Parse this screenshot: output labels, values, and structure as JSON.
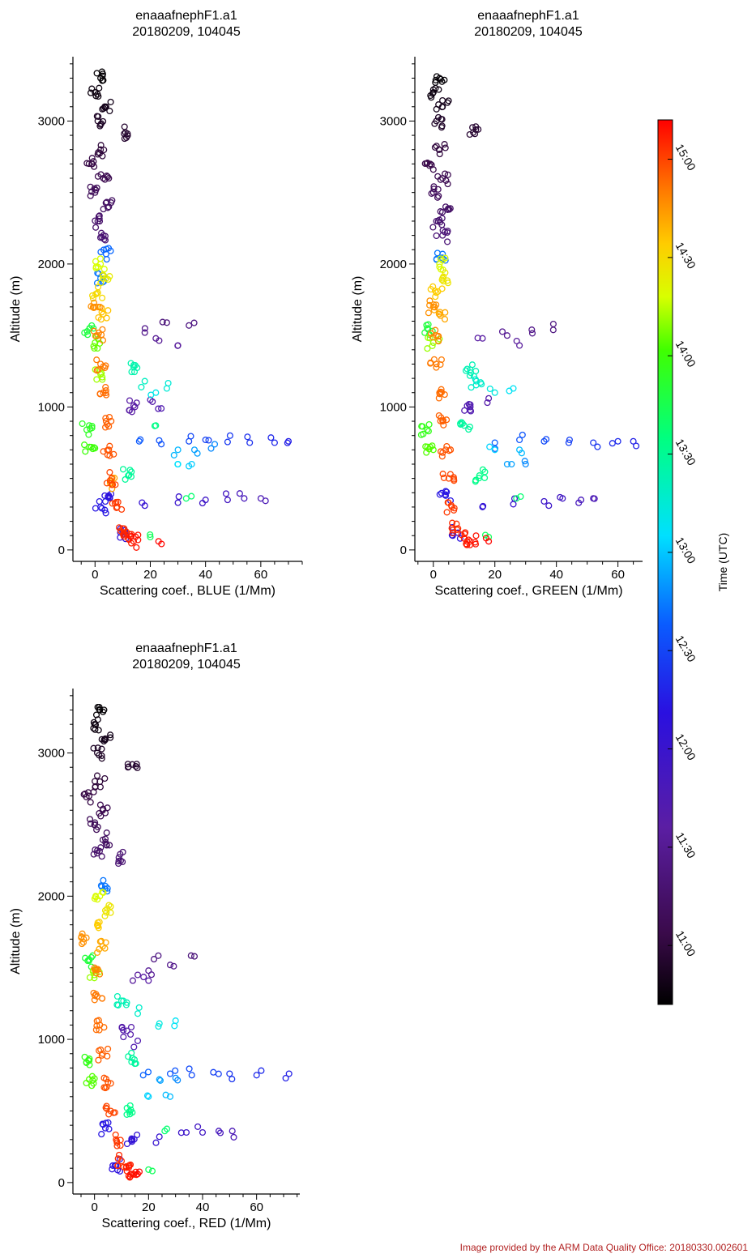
{
  "footer": "Image provided by the ARM Data Quality Office: 20180330.002601",
  "colorbar": {
    "label": "Time (UTC)",
    "range": [
      "10:42",
      "15:12"
    ],
    "ticks": [
      "11:00",
      "11:30",
      "12:00",
      "12:30",
      "13:00",
      "13:30",
      "14:00",
      "14:30",
      "15:00"
    ]
  },
  "chart_data": [
    {
      "type": "scatter",
      "title_line1": "enaaafnephF1.a1",
      "title_line2": "20180209, 104045",
      "xlabel": "Scattering coef., BLUE (1/Mm)",
      "ylabel": "Altitude (m)",
      "xlim": [
        -8,
        75
      ],
      "ylim": [
        -80,
        3450
      ],
      "xticks": [
        0,
        20,
        40,
        60
      ],
      "yticks": [
        0,
        1000,
        2000,
        3000
      ],
      "series": [
        {
          "time_range": [
            "10:42",
            "11:45"
          ],
          "points": [
            [
              2,
              3300
            ],
            [
              0,
              3200
            ],
            [
              4,
              3100
            ],
            [
              1,
              3000
            ],
            [
              11,
              2920
            ],
            [
              2,
              2800
            ],
            [
              -1,
              2700
            ],
            [
              3,
              2600
            ],
            [
              0,
              2500
            ],
            [
              5,
              2400
            ],
            [
              1,
              2300
            ],
            [
              3,
              2200
            ],
            [
              26,
              1590
            ],
            [
              34,
              1570
            ],
            [
              18,
              1520
            ],
            [
              22,
              1480
            ],
            [
              30,
              1430
            ],
            [
              14,
              1010
            ],
            [
              20,
              1050
            ],
            [
              24,
              990
            ]
          ]
        },
        {
          "time_range": [
            "11:45",
            "12:15"
          ],
          "points": [
            [
              60,
              360
            ],
            [
              54,
              360
            ],
            [
              48,
              350
            ],
            [
              40,
              350
            ],
            [
              30,
              330
            ],
            [
              18,
              310
            ],
            [
              10,
              120
            ],
            [
              5,
              380
            ],
            [
              2,
              300
            ]
          ]
        },
        {
          "time_range": [
            "12:15",
            "12:45"
          ],
          "points": [
            [
              70,
              760
            ],
            [
              65,
              750
            ],
            [
              56,
              750
            ],
            [
              48,
              755
            ],
            [
              40,
              770
            ],
            [
              34,
              760
            ],
            [
              24,
              740
            ],
            [
              16,
              760
            ],
            [
              4,
              2070
            ],
            [
              2,
              1900
            ]
          ]
        },
        {
          "time_range": [
            "12:45",
            "13:45"
          ],
          "points": [
            [
              42,
              710
            ],
            [
              36,
              700
            ],
            [
              30,
              700
            ],
            [
              35,
              600
            ],
            [
              30,
              600
            ],
            [
              22,
              1100
            ],
            [
              26,
              1130
            ],
            [
              18,
              1180
            ],
            [
              14,
              1280
            ],
            [
              12,
              520
            ],
            [
              22,
              870
            ],
            [
              33,
              360
            ],
            [
              20,
              90
            ]
          ]
        },
        {
          "time_range": [
            "13:45",
            "14:15"
          ],
          "points": [
            [
              -2,
              1550
            ],
            [
              -3,
              840
            ],
            [
              -2,
              720
            ],
            [
              0,
              1450
            ],
            [
              2,
              1230
            ]
          ]
        },
        {
          "time_range": [
            "14:15",
            "14:45"
          ],
          "points": [
            [
              2,
              2000
            ],
            [
              4,
              1900
            ],
            [
              1,
              1800
            ],
            [
              3,
              1650
            ],
            [
              6,
              470
            ]
          ]
        },
        {
          "time_range": [
            "14:45",
            "15:12"
          ],
          "points": [
            [
              0,
              1700
            ],
            [
              1,
              1500
            ],
            [
              2,
              1300
            ],
            [
              3,
              1100
            ],
            [
              4,
              900
            ],
            [
              5,
              700
            ],
            [
              6,
              500
            ],
            [
              8,
              300
            ],
            [
              10,
              150
            ],
            [
              12,
              80
            ],
            [
              14,
              60
            ],
            [
              23,
              60
            ]
          ]
        }
      ]
    },
    {
      "type": "scatter",
      "title_line1": "enaaafnephF1.a1",
      "title_line2": "20180209, 104045",
      "xlabel": "Scattering coef., GREEN (1/Mm)",
      "ylabel": "Altitude (m)",
      "xlim": [
        -6,
        68
      ],
      "ylim": [
        -80,
        3450
      ],
      "xticks": [
        0,
        20,
        40,
        60
      ],
      "yticks": [
        0,
        1000,
        2000,
        3000
      ],
      "series": [
        {
          "time_range": [
            "10:42",
            "11:45"
          ],
          "points": [
            [
              2,
              3300
            ],
            [
              0,
              3200
            ],
            [
              3,
              3100
            ],
            [
              1,
              3000
            ],
            [
              13,
              2920
            ],
            [
              2,
              2800
            ],
            [
              -1,
              2700
            ],
            [
              3,
              2600
            ],
            [
              0,
              2500
            ],
            [
              4,
              2400
            ],
            [
              1,
              2300
            ],
            [
              3,
              2200
            ],
            [
              39,
              1580
            ],
            [
              32,
              1540
            ],
            [
              24,
              1500
            ],
            [
              28,
              1430
            ],
            [
              16,
              1480
            ],
            [
              18,
              1060
            ],
            [
              12,
              1000
            ]
          ]
        },
        {
          "time_range": [
            "11:45",
            "12:15"
          ],
          "points": [
            [
              52,
              360
            ],
            [
              48,
              350
            ],
            [
              42,
              360
            ],
            [
              36,
              340
            ],
            [
              26,
              320
            ],
            [
              16,
              300
            ],
            [
              8,
              120
            ],
            [
              4,
              380
            ]
          ]
        },
        {
          "time_range": [
            "12:15",
            "12:45"
          ],
          "points": [
            [
              65,
              760
            ],
            [
              60,
              760
            ],
            [
              52,
              750
            ],
            [
              44,
              750
            ],
            [
              36,
              760
            ],
            [
              28,
              770
            ],
            [
              20,
              750
            ],
            [
              3,
              2070
            ]
          ]
        },
        {
          "time_range": [
            "12:45",
            "13:45"
          ],
          "points": [
            [
              30,
              600
            ],
            [
              24,
              600
            ],
            [
              28,
              700
            ],
            [
              20,
              700
            ],
            [
              26,
              1130
            ],
            [
              20,
              1100
            ],
            [
              14,
              1180
            ],
            [
              12,
              1260
            ],
            [
              10,
              870
            ],
            [
              15,
              520
            ],
            [
              27,
              360
            ],
            [
              18,
              90
            ]
          ]
        },
        {
          "time_range": [
            "13:45",
            "14:15"
          ],
          "points": [
            [
              -2,
              1550
            ],
            [
              -2,
              840
            ],
            [
              -1,
              720
            ],
            [
              0,
              1450
            ]
          ]
        },
        {
          "time_range": [
            "14:15",
            "14:45"
          ],
          "points": [
            [
              2,
              2000
            ],
            [
              3,
              1900
            ],
            [
              1,
              1800
            ],
            [
              2,
              1650
            ]
          ]
        },
        {
          "time_range": [
            "14:45",
            "15:12"
          ],
          "points": [
            [
              0,
              1700
            ],
            [
              1,
              1500
            ],
            [
              1,
              1300
            ],
            [
              2,
              1100
            ],
            [
              3,
              900
            ],
            [
              4,
              700
            ],
            [
              5,
              500
            ],
            [
              6,
              300
            ],
            [
              8,
              150
            ],
            [
              10,
              80
            ],
            [
              12,
              60
            ],
            [
              18,
              60
            ]
          ]
        }
      ]
    },
    {
      "type": "scatter",
      "title_line1": "enaaafnephF1.a1",
      "title_line2": "20180209, 104045",
      "xlabel": "Scattering coef., RED (1/Mm)",
      "ylabel": "Altitude (m)",
      "xlim": [
        -8,
        76
      ],
      "ylim": [
        -80,
        3450
      ],
      "xticks": [
        0,
        20,
        40,
        60
      ],
      "yticks": [
        0,
        1000,
        2000,
        3000
      ],
      "series": [
        {
          "time_range": [
            "10:42",
            "11:45"
          ],
          "points": [
            [
              2,
              3300
            ],
            [
              0,
              3200
            ],
            [
              4,
              3100
            ],
            [
              1,
              3000
            ],
            [
              14,
              2920
            ],
            [
              2,
              2800
            ],
            [
              -2,
              2700
            ],
            [
              3,
              2600
            ],
            [
              0,
              2500
            ],
            [
              4,
              2400
            ],
            [
              1,
              2300
            ],
            [
              9,
              2270
            ],
            [
              37,
              1580
            ],
            [
              22,
              1560
            ],
            [
              28,
              1520
            ],
            [
              20,
              1480
            ],
            [
              16,
              1450
            ],
            [
              20,
              1410
            ],
            [
              12,
              1060
            ],
            [
              16,
              990
            ]
          ]
        },
        {
          "time_range": [
            "11:45",
            "12:15"
          ],
          "points": [
            [
              51,
              360
            ],
            [
              46,
              360
            ],
            [
              40,
              350
            ],
            [
              34,
              350
            ],
            [
              24,
              320
            ],
            [
              14,
              300
            ],
            [
              8,
              120
            ],
            [
              4,
              380
            ]
          ]
        },
        {
          "time_range": [
            "12:15",
            "12:45"
          ],
          "points": [
            [
              72,
              760
            ],
            [
              60,
              750
            ],
            [
              50,
              760
            ],
            [
              44,
              770
            ],
            [
              36,
              750
            ],
            [
              28,
              760
            ],
            [
              18,
              750
            ],
            [
              4,
              2070
            ]
          ]
        },
        {
          "time_range": [
            "12:45",
            "13:45"
          ],
          "points": [
            [
              30,
              730
            ],
            [
              24,
              720
            ],
            [
              28,
              600
            ],
            [
              20,
              600
            ],
            [
              30,
              1130
            ],
            [
              24,
              1110
            ],
            [
              16,
              1180
            ],
            [
              10,
              1270
            ],
            [
              14,
              870
            ],
            [
              12,
              520
            ],
            [
              26,
              360
            ],
            [
              20,
              90
            ]
          ]
        },
        {
          "time_range": [
            "13:45",
            "14:15"
          ],
          "points": [
            [
              -2,
              1550
            ],
            [
              -3,
              840
            ],
            [
              -2,
              720
            ],
            [
              0,
              1450
            ]
          ]
        },
        {
          "time_range": [
            "14:15",
            "14:45"
          ],
          "points": [
            [
              2,
              2000
            ],
            [
              4,
              1900
            ],
            [
              1,
              1800
            ],
            [
              3,
              1650
            ]
          ]
        },
        {
          "time_range": [
            "14:45",
            "15:12"
          ],
          "points": [
            [
              -4,
              1700
            ],
            [
              0,
              1500
            ],
            [
              1,
              1300
            ],
            [
              2,
              1100
            ],
            [
              3,
              900
            ],
            [
              5,
              700
            ],
            [
              6,
              500
            ],
            [
              8,
              300
            ],
            [
              10,
              150
            ],
            [
              12,
              80
            ],
            [
              14,
              60
            ],
            [
              16,
              60
            ]
          ]
        }
      ]
    }
  ]
}
